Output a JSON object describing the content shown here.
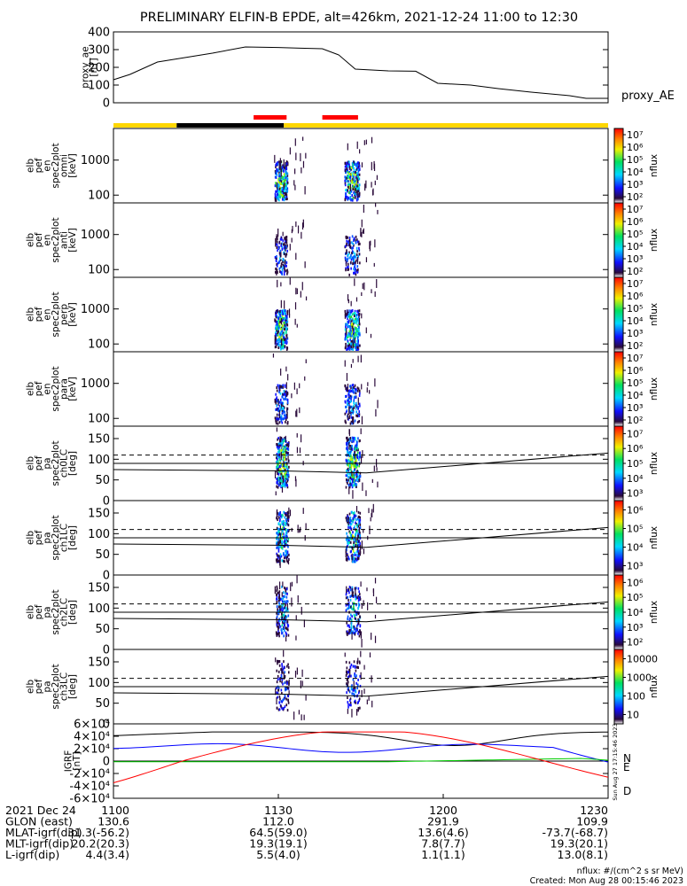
{
  "title": "PRELIMINARY ELFIN-B EPDE, alt=426km, 2021-12-24 11:00 to 12:30",
  "chart_data": {
    "type": "spectrogram-stack",
    "time_range": [
      "11:00",
      "12:30"
    ],
    "time_axis": {
      "date_label": "2021 Dec 24",
      "ticks": [
        "1100",
        "1130",
        "1200",
        "1230"
      ],
      "tick_minutes": [
        0,
        30,
        60,
        90
      ]
    },
    "ephemeris": [
      {
        "label": "GLON (east)",
        "values": [
          "130.6",
          "112.0",
          "291.9",
          "109.9"
        ]
      },
      {
        "label": "MLAT-igrf(dip)",
        "values": [
          "31.3(-56.2)",
          "64.5(59.0)",
          "13.6(4.6)",
          "-73.7(-68.7)"
        ]
      },
      {
        "label": "MLT-igrf(dip)",
        "values": [
          "20.2(20.3)",
          "19.3(19.1)",
          "7.8(7.7)",
          "19.3(20.1)"
        ]
      },
      {
        "label": "L-igrf(dip)",
        "values": [
          "4.4(3.4)",
          "5.5(4.0)",
          "1.1(1.1)",
          "13.0(8.1)"
        ]
      }
    ],
    "proxy_ae": {
      "ylabel_lines": [
        "proxy_ae",
        "[nT]"
      ],
      "legend": "proxy_AE",
      "ylim": [
        0,
        400
      ],
      "yticks": [
        "0",
        "100",
        "200",
        "300",
        "400"
      ],
      "minutes": [
        0,
        3,
        8,
        13,
        18,
        24,
        30,
        34,
        38,
        41,
        44,
        50,
        55,
        59,
        65,
        70,
        76,
        83,
        86,
        90
      ],
      "values": [
        130,
        160,
        230,
        255,
        280,
        315,
        312,
        308,
        305,
        270,
        190,
        180,
        178,
        110,
        100,
        80,
        60,
        40,
        25,
        25
      ]
    },
    "status_bar": [
      {
        "from": 0,
        "to": 11.5,
        "color": "#ffd700"
      },
      {
        "from": 11.5,
        "to": 31.0,
        "color": "#000000"
      },
      {
        "from": 31.0,
        "to": 90,
        "color": "#ffd700"
      }
    ],
    "science_zones": [
      {
        "from": 25.5,
        "to": 31.5,
        "color": "#ff0000"
      },
      {
        "from": 38.0,
        "to": 44.5,
        "color": "#ff0000"
      }
    ],
    "energy_panels": [
      {
        "ylabel_lines": [
          "elb",
          "pef",
          "en",
          "spec2plot",
          "omni",
          "[keV]"
        ],
        "zlabel": "nflux",
        "zticks": [
          "10²",
          "10³",
          "10⁴",
          "10⁵",
          "10⁶",
          "10⁷"
        ],
        "intensity": 1.0
      },
      {
        "ylabel_lines": [
          "elb",
          "pef",
          "en",
          "spec2plot",
          "anti",
          "[keV]"
        ],
        "zlabel": "nflux",
        "zticks": [
          "10²",
          "10³",
          "10⁴",
          "10⁵",
          "10⁶",
          "10⁷"
        ],
        "intensity": 0.45
      },
      {
        "ylabel_lines": [
          "elb",
          "pef",
          "en",
          "spec2plot",
          "perp",
          "[keV]"
        ],
        "zlabel": "nflux",
        "zticks": [
          "10²",
          "10³",
          "10⁴",
          "10⁵",
          "10⁶",
          "10⁷"
        ],
        "intensity": 0.95
      },
      {
        "ylabel_lines": [
          "elb",
          "pef",
          "en",
          "spec2plot",
          "para",
          "[keV]"
        ],
        "zlabel": "nflux",
        "zticks": [
          "10²",
          "10³",
          "10⁴",
          "10⁵",
          "10⁶",
          "10⁷"
        ],
        "intensity": 0.5
      }
    ],
    "energy_yticks": [
      "100",
      "1000"
    ],
    "pitch_panels": [
      {
        "ylabel_lines": [
          "elb",
          "pef",
          "pa",
          "spec2plot",
          "ch0LC",
          "[deg]"
        ],
        "zlabel": "nflux",
        "zticks": [
          "10³",
          "10⁴",
          "10⁵",
          "10⁶",
          "10⁷"
        ],
        "intensity": 1.0
      },
      {
        "ylabel_lines": [
          "elb",
          "pef",
          "pa",
          "spec2plot",
          "ch1LC",
          "[deg]"
        ],
        "zlabel": "nflux",
        "zticks": [
          "10³",
          "10⁴",
          "10⁵",
          "10⁶"
        ],
        "intensity": 0.8
      },
      {
        "ylabel_lines": [
          "elb",
          "pef",
          "pa",
          "spec2plot",
          "ch2LC",
          "[deg]"
        ],
        "zlabel": "nflux",
        "zticks": [
          "10²",
          "10³",
          "10⁴",
          "10⁵",
          "10⁶"
        ],
        "intensity": 0.6
      },
      {
        "ylabel_lines": [
          "elb",
          "pef",
          "pa",
          "spec2plot",
          "ch3LC",
          "[deg]"
        ],
        "zlabel": "nflux",
        "zticks": [
          "10",
          "100",
          "1000",
          "10000"
        ],
        "intensity": 0.35
      }
    ],
    "pitch_yticks": [
      "0",
      "50",
      "100",
      "150"
    ],
    "pitch_ylim": [
      0,
      180
    ],
    "loss_cone_deg": {
      "minutes": [
        0,
        30,
        46,
        90
      ],
      "values": [
        75,
        72,
        67,
        115
      ]
    },
    "anti_loss_cone_deg": {
      "minutes": [
        0,
        90
      ],
      "values": [
        110,
        110
      ]
    },
    "mag": {
      "ylabel_lines": [
        "IGRF",
        "[nT]"
      ],
      "ylim": [
        -60000,
        60000
      ],
      "yticks": [
        "-6×10⁴",
        "-4×10⁴",
        "-2×10⁴",
        "0",
        "2×10⁴",
        "4×10⁴",
        "6×10⁴"
      ],
      "series": [
        {
          "name": "N",
          "color": "#0000ff"
        },
        {
          "name": "E",
          "color": "#00cc00"
        },
        {
          "name": "D",
          "color": "#ff0000"
        }
      ]
    },
    "footer_units": "nflux: #/(cm^2 s sr MeV)",
    "footer_created": "Created: Mon Aug 28 00:15:46 2023",
    "side_stamp": "Sun Aug 27 17:15:46 2023"
  }
}
